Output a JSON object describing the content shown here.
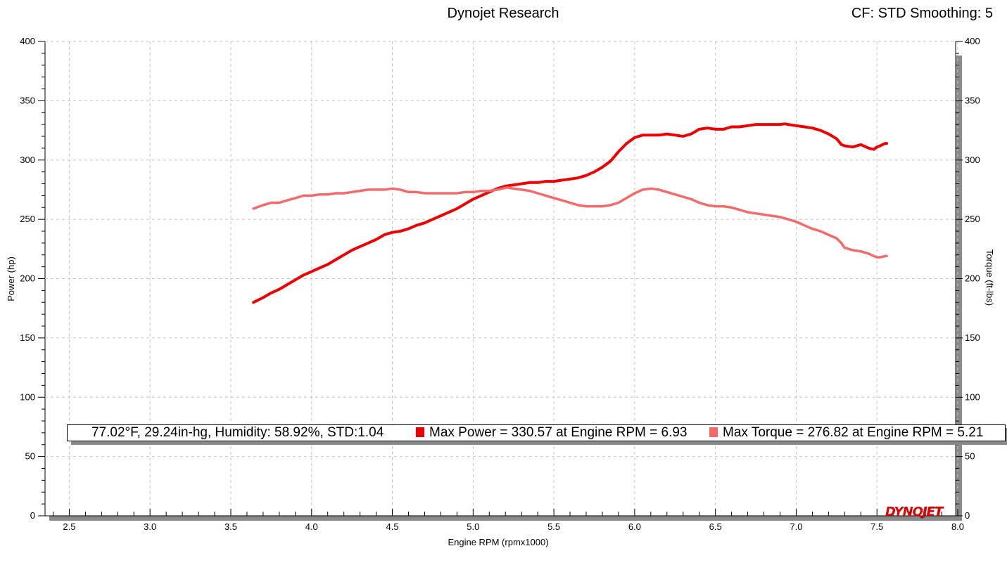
{
  "header": {
    "title": "Dynojet Research",
    "settings": "CF: STD Smoothing: 5"
  },
  "legend": {
    "conditions": "77.02°F, 29.24in-hg, Humidity: 58.92%, STD:1.04",
    "max_power": "Max Power = 330.57 at Engine RPM = 6.93",
    "max_torque": "Max Torque = 276.82 at Engine RPM = 5.21"
  },
  "logo": {
    "part1": "DYNO",
    "part2": "JET"
  },
  "colors": {
    "power": "#ee0000",
    "torque": "#f46a6a",
    "grid": "#c4c4c4"
  },
  "chart_data": {
    "type": "line",
    "xlabel": "Engine RPM (rpmx1000)",
    "ylabel": "Power (hp)",
    "y2label": "Torque (ft-lbs)",
    "xlim": [
      2.35,
      8.0
    ],
    "ylim": [
      0,
      400
    ],
    "y2lim": [
      0,
      400
    ],
    "grid": true,
    "x_ticks": [
      "2.5",
      "3.0",
      "3.5",
      "4.0",
      "4.5",
      "5.0",
      "5.5",
      "6.0",
      "6.5",
      "7.0",
      "7.5",
      "8.0"
    ],
    "y_ticks": [
      "0",
      "50",
      "100",
      "150",
      "200",
      "250",
      "300",
      "350",
      "400"
    ],
    "y2_ticks": [
      "0",
      "50",
      "100",
      "150",
      "200",
      "250",
      "300",
      "350",
      "400"
    ],
    "series": [
      {
        "name": "Power",
        "axis": "left",
        "x": [
          3.64,
          3.7,
          3.75,
          3.8,
          3.85,
          3.9,
          3.95,
          4.0,
          4.05,
          4.1,
          4.15,
          4.2,
          4.25,
          4.3,
          4.35,
          4.4,
          4.45,
          4.5,
          4.55,
          4.6,
          4.65,
          4.7,
          4.75,
          4.8,
          4.85,
          4.9,
          4.95,
          5.0,
          5.05,
          5.1,
          5.15,
          5.2,
          5.25,
          5.3,
          5.35,
          5.4,
          5.45,
          5.5,
          5.55,
          5.6,
          5.65,
          5.7,
          5.75,
          5.8,
          5.85,
          5.9,
          5.95,
          6.0,
          6.05,
          6.1,
          6.15,
          6.2,
          6.25,
          6.3,
          6.35,
          6.4,
          6.45,
          6.5,
          6.55,
          6.6,
          6.65,
          6.7,
          6.75,
          6.8,
          6.85,
          6.9,
          6.93,
          6.95,
          7.0,
          7.05,
          7.1,
          7.15,
          7.2,
          7.25,
          7.28,
          7.3,
          7.35,
          7.4,
          7.45,
          7.48,
          7.5,
          7.52,
          7.55,
          7.56
        ],
        "values": [
          180,
          184,
          188,
          191,
          195,
          199,
          203,
          206,
          209,
          212,
          216,
          220,
          224,
          227,
          230,
          233,
          237,
          239,
          240,
          242,
          245,
          247,
          250,
          253,
          256,
          259,
          263,
          267,
          270,
          273,
          276,
          278,
          279,
          280,
          281,
          281,
          282,
          282,
          283,
          284,
          285,
          287,
          290,
          294,
          299,
          307,
          314,
          319,
          321,
          321,
          321,
          322,
          321,
          320,
          322,
          326,
          327,
          326,
          326,
          328,
          328,
          329,
          330,
          330,
          330,
          330,
          330.57,
          330,
          329,
          328,
          327,
          325,
          322,
          318,
          313,
          312,
          311,
          313,
          310,
          309,
          311,
          312,
          314,
          314
        ]
      },
      {
        "name": "Torque",
        "axis": "right",
        "x": [
          3.64,
          3.7,
          3.75,
          3.8,
          3.85,
          3.9,
          3.95,
          4.0,
          4.05,
          4.1,
          4.15,
          4.2,
          4.25,
          4.3,
          4.35,
          4.4,
          4.45,
          4.5,
          4.55,
          4.6,
          4.65,
          4.7,
          4.75,
          4.8,
          4.85,
          4.9,
          4.95,
          5.0,
          5.05,
          5.1,
          5.15,
          5.21,
          5.25,
          5.3,
          5.35,
          5.4,
          5.45,
          5.5,
          5.55,
          5.6,
          5.65,
          5.7,
          5.75,
          5.8,
          5.85,
          5.9,
          5.95,
          6.0,
          6.05,
          6.1,
          6.15,
          6.2,
          6.25,
          6.3,
          6.35,
          6.4,
          6.45,
          6.5,
          6.55,
          6.6,
          6.65,
          6.7,
          6.75,
          6.8,
          6.85,
          6.9,
          6.95,
          7.0,
          7.05,
          7.1,
          7.15,
          7.2,
          7.25,
          7.28,
          7.3,
          7.35,
          7.4,
          7.45,
          7.48,
          7.5,
          7.52,
          7.55,
          7.56
        ],
        "values": [
          259,
          262,
          264,
          264,
          266,
          268,
          270,
          270,
          271,
          271,
          272,
          272,
          273,
          274,
          275,
          275,
          275,
          276,
          275,
          273,
          273,
          272,
          272,
          272,
          272,
          272,
          273,
          273,
          274,
          274,
          275,
          276.82,
          276,
          275,
          274,
          272,
          270,
          268,
          266,
          264,
          262,
          261,
          261,
          261,
          262,
          264,
          268,
          272,
          275,
          276,
          275,
          273,
          271,
          269,
          267,
          264,
          262,
          261,
          261,
          260,
          258,
          256,
          255,
          254,
          253,
          252,
          250,
          248,
          245,
          242,
          240,
          237,
          234,
          230,
          226,
          224,
          223,
          221,
          219,
          218,
          218,
          219,
          219
        ]
      }
    ]
  }
}
